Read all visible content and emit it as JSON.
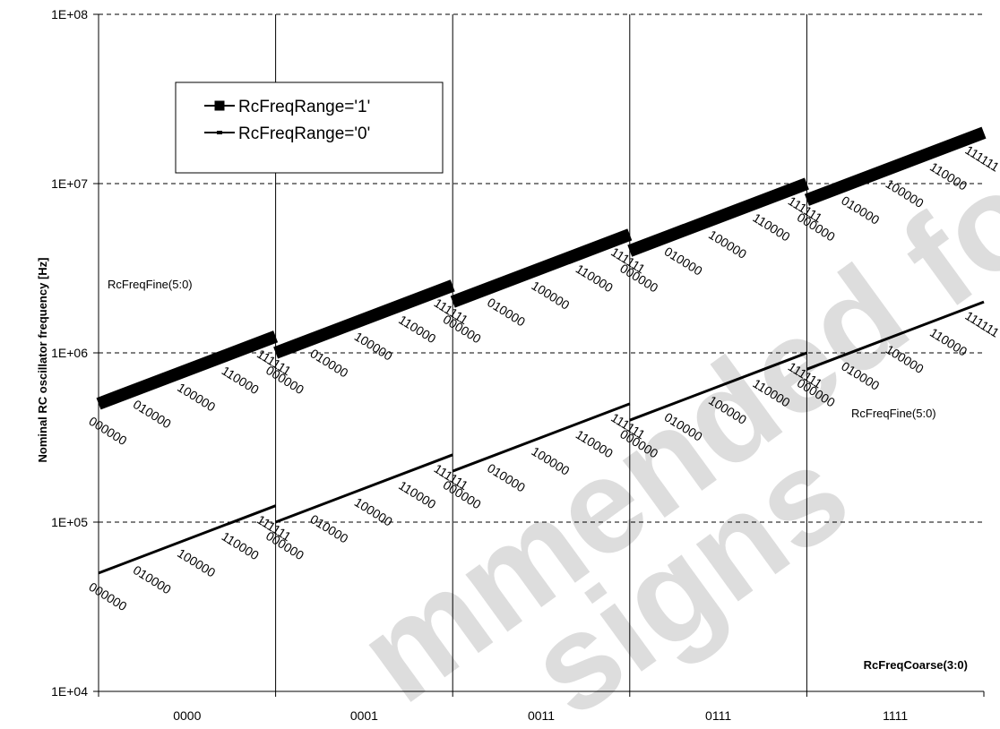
{
  "chart_data": {
    "type": "line",
    "ylabel": "Nominal RC oscillator frequency  [Hz]",
    "xlabel": "RcFreqCoarse(3:0)",
    "yscale": "log",
    "ylim": [
      10000,
      100000000
    ],
    "y_ticks": [
      "1E+04",
      "1E+05",
      "1E+06",
      "1E+07",
      "1E+08"
    ],
    "coarse_categories": [
      "0000",
      "0001",
      "0011",
      "0111",
      "1111"
    ],
    "fine_codes": [
      "000000",
      "010000",
      "100000",
      "110000",
      "111111"
    ],
    "fine_label": "RcFreqFine(5:0)",
    "grid": {
      "horizontal": "dashed",
      "vertical": "solid"
    },
    "legend_position": "top-left",
    "series": [
      {
        "name": "RcFreqRange='1'",
        "segments": [
          {
            "coarse": "0000",
            "start": 500000,
            "end": 1250000
          },
          {
            "coarse": "0001",
            "start": 1000000,
            "end": 2500000
          },
          {
            "coarse": "0011",
            "start": 2000000,
            "end": 5000000
          },
          {
            "coarse": "0111",
            "start": 4000000,
            "end": 10000000
          },
          {
            "coarse": "1111",
            "start": 8000000,
            "end": 20000000
          }
        ]
      },
      {
        "name": "RcFreqRange='0'",
        "segments": [
          {
            "coarse": "0000",
            "start": 50000,
            "end": 125000
          },
          {
            "coarse": "0001",
            "start": 100000,
            "end": 250000
          },
          {
            "coarse": "0011",
            "start": 200000,
            "end": 500000
          },
          {
            "coarse": "0111",
            "start": 400000,
            "end": 1000000
          },
          {
            "coarse": "1111",
            "start": 800000,
            "end": 2000000
          }
        ]
      }
    ]
  },
  "watermark": {
    "line1": "mmended for",
    "line2": "signs"
  }
}
